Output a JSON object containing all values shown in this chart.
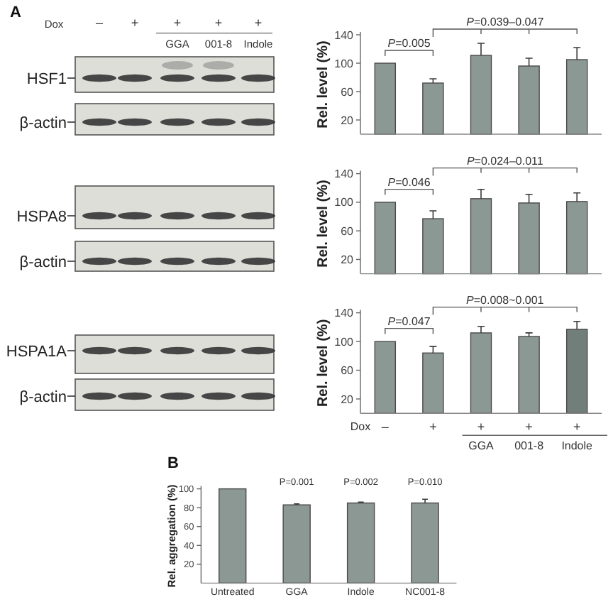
{
  "chart_data": [
    {
      "type": "other",
      "title": "A",
      "annotations": [
        "Dox",
        "–",
        "+",
        "+",
        "+",
        "+",
        "GGA",
        "001-8",
        "Indole",
        "HSF1",
        "β-actin",
        "HSPA8",
        "β-actin",
        "HSPA1A",
        "β-actin"
      ]
    },
    {
      "type": "bar",
      "ylabel": "Rel. level (%)",
      "categories": [
        null,
        null,
        null,
        null,
        null
      ],
      "values": [
        100,
        72,
        111,
        96,
        105
      ],
      "errors": [
        null,
        [
          72,
          78
        ],
        [
          111,
          128
        ],
        [
          96,
          107
        ],
        [
          105,
          122
        ]
      ],
      "color": "#8c9893",
      "ylim": [
        0,
        140
      ],
      "yticks": [
        20,
        60,
        100,
        140
      ],
      "tick_labels": "y",
      "annotations": [
        "P=0.005",
        "P=0.039–0.047"
      ]
    },
    {
      "type": "bar",
      "ylabel": "Rel. level (%)",
      "categories": [
        null,
        null,
        null,
        null,
        null
      ],
      "values": [
        100,
        77,
        105,
        99,
        101
      ],
      "errors": [
        null,
        [
          77,
          88
        ],
        [
          105,
          118
        ],
        [
          99,
          111
        ],
        [
          101,
          113
        ]
      ],
      "color": "#8c9893",
      "ylim": [
        0,
        140
      ],
      "yticks": [
        20,
        60,
        100,
        140
      ],
      "tick_labels": "y",
      "annotations": [
        "P=0.046",
        "P=0.024–0.011"
      ]
    },
    {
      "type": "bar",
      "ylabel": "Rel. level (%)",
      "xlabel": "Dox",
      "categories": [
        "–",
        "+",
        "+",
        "+",
        "+"
      ],
      "values": [
        100,
        84,
        112,
        107,
        117
      ],
      "errors": [
        null,
        [
          84,
          93
        ],
        [
          112,
          121
        ],
        [
          107,
          112
        ],
        [
          117,
          128
        ]
      ],
      "colors": [
        "#8c9893",
        "#8c9893",
        "#8c9893",
        "#8c9893",
        "#727e79"
      ],
      "ylim": [
        0,
        140
      ],
      "yticks": [
        20,
        60,
        100,
        140
      ],
      "annotations": [
        "P=0.047",
        "P=0.008~0.001",
        "GGA",
        "001-8",
        "Indole"
      ]
    },
    {
      "type": "bar",
      "title": "B",
      "ylabel": "Rel. aggregation (%)",
      "categories": [
        "Untreated",
        "GGA",
        "Indole",
        "NC001-8"
      ],
      "values": [
        100,
        83,
        85,
        85
      ],
      "errors": [
        null,
        [
          83,
          84
        ],
        [
          85,
          86
        ],
        [
          85,
          89
        ]
      ],
      "color": "#8c9893",
      "ylim": [
        0,
        100
      ],
      "yticks": [
        20,
        40,
        60,
        80,
        100
      ],
      "annotations": [
        "P=0.001",
        "P=0.002",
        "P=0.010"
      ]
    }
  ]
}
